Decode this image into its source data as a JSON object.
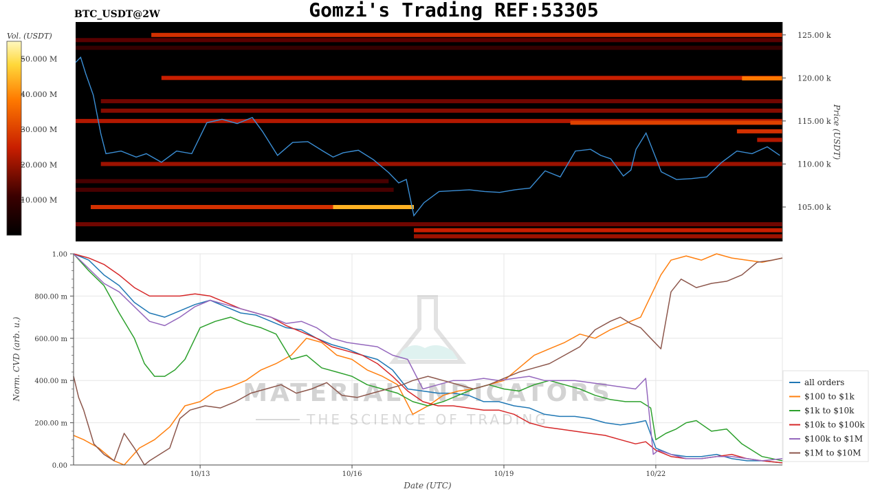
{
  "title": "Gomzi's Trading REF:53305",
  "symbol": "BTC_USDT@2W",
  "watermark": {
    "line1": "MATERIAL INDICATORS",
    "line2": "THE SCIENCE OF TRADING"
  },
  "colors": {
    "heatmap_bg": "#000000",
    "price_line": "#3b8fd6",
    "grid": "#e8e8e8"
  },
  "chart_data": [
    {
      "type": "heatmap",
      "name_label": "BTC_USDT@2W",
      "ylabel": "Price (USDT)",
      "ylim": [
        101000,
        126500
      ],
      "yticks": [
        {
          "value": 105000,
          "label": "105.00 k"
        },
        {
          "value": 110000,
          "label": "110.00 k"
        },
        {
          "value": 115000,
          "label": "115.00 k"
        },
        {
          "value": 120000,
          "label": "120.00 k"
        },
        {
          "value": 125000,
          "label": "125.00 k"
        }
      ],
      "colorbar": {
        "label": "Vol. (USDT)",
        "range": [
          0,
          55000000
        ],
        "ticks": [
          {
            "value": 10000000,
            "label": "10.000 M"
          },
          {
            "value": 20000000,
            "label": "20.000 M"
          },
          {
            "value": 30000000,
            "label": "30.000 M"
          },
          {
            "value": 40000000,
            "label": "40.000 M"
          },
          {
            "value": 50000000,
            "label": "50.000 M"
          }
        ]
      },
      "xlim": [
        0,
        14
      ],
      "bands": [
        {
          "price": 125000,
          "start": 1.5,
          "end": 14,
          "intensity": 0.55
        },
        {
          "price": 124400,
          "start": 0,
          "end": 14,
          "intensity": 0.25
        },
        {
          "price": 123500,
          "start": 0,
          "end": 14,
          "intensity": 0.15
        },
        {
          "price": 120000,
          "start": 1.7,
          "end": 14,
          "intensity": 0.5
        },
        {
          "price": 119950,
          "start": 13.2,
          "end": 14,
          "intensity": 0.75
        },
        {
          "price": 117300,
          "start": 0.5,
          "end": 14,
          "intensity": 0.3
        },
        {
          "price": 116200,
          "start": 0.5,
          "end": 14,
          "intensity": 0.35
        },
        {
          "price": 115000,
          "start": 0,
          "end": 14,
          "intensity": 0.45
        },
        {
          "price": 114800,
          "start": 9.8,
          "end": 14,
          "intensity": 0.6
        },
        {
          "price": 113800,
          "start": 13.1,
          "end": 14,
          "intensity": 0.55
        },
        {
          "price": 112800,
          "start": 13.5,
          "end": 14,
          "intensity": 0.45
        },
        {
          "price": 110000,
          "start": 0.5,
          "end": 14,
          "intensity": 0.4
        },
        {
          "price": 108000,
          "start": 0,
          "end": 6.2,
          "intensity": 0.2
        },
        {
          "price": 107000,
          "start": 0,
          "end": 6.3,
          "intensity": 0.2
        },
        {
          "price": 105000,
          "start": 0.3,
          "end": 5.1,
          "intensity": 0.55
        },
        {
          "price": 105000,
          "start": 5.1,
          "end": 6.7,
          "intensity": 0.9
        },
        {
          "price": 103000,
          "start": 0,
          "end": 14,
          "intensity": 0.3
        },
        {
          "price": 102300,
          "start": 6.7,
          "end": 14,
          "intensity": 0.5
        },
        {
          "price": 101600,
          "start": 6.7,
          "end": 14,
          "intensity": 0.4
        }
      ],
      "price_series": {
        "x": [
          0,
          0.1,
          0.2,
          0.35,
          0.5,
          0.6,
          0.9,
          1.2,
          1.4,
          1.7,
          2.0,
          2.3,
          2.6,
          2.9,
          3.2,
          3.5,
          3.7,
          4.0,
          4.3,
          4.6,
          4.9,
          5.1,
          5.3,
          5.6,
          5.9,
          6.2,
          6.4,
          6.55,
          6.7,
          6.9,
          7.2,
          7.5,
          7.8,
          8.1,
          8.4,
          8.7,
          9.0,
          9.3,
          9.6,
          9.9,
          10.2,
          10.4,
          10.6,
          10.85,
          11.0,
          11.1,
          11.3,
          11.6,
          11.9,
          12.2,
          12.5,
          12.8,
          13.1,
          13.4,
          13.7,
          13.95
        ],
        "y": [
          121800,
          122400,
          120500,
          118000,
          113500,
          111200,
          111500,
          110800,
          111200,
          110200,
          111500,
          111200,
          114800,
          115200,
          114700,
          115400,
          113800,
          111000,
          112500,
          112600,
          111500,
          110800,
          111300,
          111600,
          110500,
          109000,
          107800,
          108200,
          104000,
          105500,
          106800,
          106900,
          107000,
          106800,
          106700,
          107000,
          107200,
          109200,
          108500,
          111500,
          111700,
          111000,
          110600,
          108600,
          109300,
          111700,
          113600,
          109100,
          108200,
          108300,
          108500,
          110200,
          111500,
          111200,
          112000,
          111000
        ]
      }
    },
    {
      "type": "line",
      "xlabel": "Date (UTC)",
      "ylabel": "Norm. CVD (arb. u.)",
      "xlim": [
        0,
        14
      ],
      "ylim": [
        0,
        1
      ],
      "xticks": [
        {
          "value": 2.5,
          "label": "10/13"
        },
        {
          "value": 5.5,
          "label": "10/16"
        },
        {
          "value": 8.5,
          "label": "10/19"
        },
        {
          "value": 11.5,
          "label": "10/22"
        }
      ],
      "yticks": [
        {
          "value": 0.0,
          "label": "0.00"
        },
        {
          "value": 0.2,
          "label": "200.00 m"
        },
        {
          "value": 0.4,
          "label": "400.00 m"
        },
        {
          "value": 0.6,
          "label": "600.00 m"
        },
        {
          "value": 0.8,
          "label": "800.00 m"
        },
        {
          "value": 1.0,
          "label": "1.00"
        }
      ],
      "grid": true,
      "legend_position": "right",
      "series": [
        {
          "name": "all orders",
          "color": "#1f77b4",
          "x": [
            0,
            0.3,
            0.6,
            0.9,
            1.2,
            1.5,
            1.8,
            2.1,
            2.4,
            2.7,
            3.0,
            3.3,
            3.6,
            3.9,
            4.2,
            4.5,
            4.8,
            5.1,
            5.4,
            5.7,
            6.0,
            6.3,
            6.6,
            6.9,
            7.2,
            7.5,
            7.8,
            8.1,
            8.4,
            8.7,
            9.0,
            9.3,
            9.6,
            9.9,
            10.2,
            10.5,
            10.8,
            11.1,
            11.3,
            11.5,
            11.8,
            12.1,
            12.4,
            12.7,
            13.0,
            13.3,
            13.6,
            14.0
          ],
          "y": [
            1.0,
            0.97,
            0.9,
            0.85,
            0.77,
            0.72,
            0.7,
            0.73,
            0.76,
            0.78,
            0.75,
            0.72,
            0.71,
            0.68,
            0.65,
            0.64,
            0.6,
            0.57,
            0.55,
            0.52,
            0.5,
            0.45,
            0.36,
            0.35,
            0.34,
            0.34,
            0.33,
            0.3,
            0.3,
            0.28,
            0.27,
            0.24,
            0.23,
            0.23,
            0.22,
            0.2,
            0.19,
            0.2,
            0.21,
            0.08,
            0.05,
            0.04,
            0.04,
            0.05,
            0.03,
            0.02,
            0.02,
            0.01
          ]
        },
        {
          "name": "$100 to $1k",
          "color": "#ff7f0e",
          "x": [
            0,
            0.2,
            0.5,
            0.8,
            1.0,
            1.3,
            1.6,
            1.9,
            2.2,
            2.5,
            2.8,
            3.1,
            3.4,
            3.7,
            4.0,
            4.3,
            4.6,
            4.9,
            5.2,
            5.5,
            5.8,
            6.1,
            6.4,
            6.7,
            7.0,
            7.3,
            7.6,
            7.9,
            8.2,
            8.5,
            8.8,
            9.1,
            9.4,
            9.7,
            10.0,
            10.3,
            10.6,
            10.9,
            11.2,
            11.4,
            11.6,
            11.8,
            12.1,
            12.4,
            12.7,
            13.0,
            13.3,
            13.6,
            14.0
          ],
          "y": [
            0.14,
            0.12,
            0.08,
            0.02,
            0.0,
            0.08,
            0.12,
            0.18,
            0.28,
            0.3,
            0.35,
            0.37,
            0.4,
            0.45,
            0.48,
            0.52,
            0.6,
            0.58,
            0.52,
            0.5,
            0.45,
            0.42,
            0.38,
            0.24,
            0.28,
            0.33,
            0.35,
            0.36,
            0.38,
            0.4,
            0.46,
            0.52,
            0.55,
            0.58,
            0.62,
            0.6,
            0.64,
            0.67,
            0.7,
            0.8,
            0.9,
            0.97,
            0.99,
            0.97,
            1.0,
            0.98,
            0.97,
            0.96,
            0.98
          ]
        },
        {
          "name": "$1k to $10k",
          "color": "#2ca02c",
          "x": [
            0,
            0.3,
            0.6,
            0.9,
            1.2,
            1.4,
            1.6,
            1.8,
            2.0,
            2.2,
            2.5,
            2.8,
            3.1,
            3.4,
            3.7,
            4.0,
            4.3,
            4.6,
            4.9,
            5.2,
            5.5,
            5.8,
            6.1,
            6.4,
            6.7,
            7.0,
            7.3,
            7.6,
            7.9,
            8.2,
            8.5,
            8.8,
            9.1,
            9.4,
            9.7,
            10.0,
            10.3,
            10.6,
            10.9,
            11.2,
            11.4,
            11.5,
            11.7,
            11.9,
            12.1,
            12.3,
            12.6,
            12.9,
            13.2,
            13.6,
            14.0
          ],
          "y": [
            1.0,
            0.92,
            0.85,
            0.72,
            0.6,
            0.48,
            0.42,
            0.42,
            0.45,
            0.5,
            0.65,
            0.68,
            0.7,
            0.67,
            0.65,
            0.62,
            0.5,
            0.52,
            0.46,
            0.44,
            0.42,
            0.38,
            0.36,
            0.34,
            0.3,
            0.28,
            0.3,
            0.33,
            0.36,
            0.38,
            0.36,
            0.35,
            0.38,
            0.4,
            0.38,
            0.36,
            0.33,
            0.31,
            0.3,
            0.3,
            0.27,
            0.12,
            0.15,
            0.17,
            0.2,
            0.21,
            0.16,
            0.17,
            0.1,
            0.04,
            0.02
          ]
        },
        {
          "name": "$10k to $100k",
          "color": "#d62728",
          "x": [
            0,
            0.3,
            0.6,
            0.9,
            1.2,
            1.5,
            1.8,
            2.1,
            2.4,
            2.7,
            3.0,
            3.3,
            3.6,
            3.9,
            4.2,
            4.5,
            4.8,
            5.1,
            5.4,
            5.7,
            6.0,
            6.3,
            6.6,
            6.9,
            7.2,
            7.5,
            7.8,
            8.1,
            8.4,
            8.7,
            9.0,
            9.3,
            9.6,
            9.9,
            10.2,
            10.5,
            10.8,
            11.1,
            11.3,
            11.5,
            11.8,
            12.1,
            12.4,
            12.7,
            13.0,
            13.3,
            13.6,
            14.0
          ],
          "y": [
            1.0,
            0.98,
            0.95,
            0.9,
            0.84,
            0.8,
            0.8,
            0.8,
            0.81,
            0.8,
            0.77,
            0.74,
            0.72,
            0.7,
            0.66,
            0.63,
            0.6,
            0.56,
            0.54,
            0.52,
            0.48,
            0.42,
            0.35,
            0.3,
            0.28,
            0.28,
            0.27,
            0.26,
            0.26,
            0.24,
            0.2,
            0.18,
            0.17,
            0.16,
            0.15,
            0.14,
            0.12,
            0.1,
            0.11,
            0.07,
            0.04,
            0.03,
            0.03,
            0.04,
            0.05,
            0.03,
            0.02,
            0.01
          ]
        },
        {
          "name": "$100k to $1M",
          "color": "#9467bd",
          "x": [
            0,
            0.3,
            0.6,
            0.9,
            1.2,
            1.5,
            1.8,
            2.1,
            2.4,
            2.7,
            3.0,
            3.3,
            3.6,
            3.9,
            4.2,
            4.5,
            4.8,
            5.1,
            5.4,
            5.7,
            6.0,
            6.3,
            6.6,
            6.9,
            7.2,
            7.5,
            7.8,
            8.1,
            8.4,
            8.7,
            9.0,
            9.3,
            9.6,
            9.9,
            10.2,
            10.5,
            10.8,
            11.1,
            11.3,
            11.45,
            11.55,
            11.8,
            12.1,
            12.4,
            12.7,
            13.0,
            13.3,
            13.6,
            14.0
          ],
          "y": [
            1.0,
            0.93,
            0.86,
            0.82,
            0.75,
            0.68,
            0.66,
            0.7,
            0.75,
            0.78,
            0.76,
            0.74,
            0.72,
            0.7,
            0.67,
            0.68,
            0.65,
            0.6,
            0.58,
            0.57,
            0.56,
            0.52,
            0.5,
            0.36,
            0.38,
            0.4,
            0.4,
            0.41,
            0.4,
            0.41,
            0.42,
            0.4,
            0.4,
            0.4,
            0.39,
            0.38,
            0.37,
            0.36,
            0.41,
            0.05,
            0.07,
            0.05,
            0.03,
            0.03,
            0.04,
            0.04,
            0.03,
            0.02,
            0.03
          ]
        },
        {
          "name": "$1M to $10M",
          "color": "#8c564b",
          "x": [
            0,
            0.1,
            0.2,
            0.4,
            0.6,
            0.8,
            1.0,
            1.2,
            1.4,
            1.5,
            1.7,
            1.9,
            2.1,
            2.3,
            2.6,
            2.9,
            3.2,
            3.5,
            3.8,
            4.1,
            4.4,
            4.7,
            5.0,
            5.3,
            5.6,
            5.9,
            6.2,
            6.5,
            6.7,
            7.0,
            7.3,
            7.6,
            7.9,
            8.2,
            8.5,
            8.8,
            9.1,
            9.4,
            9.7,
            10.0,
            10.3,
            10.6,
            10.8,
            11.0,
            11.2,
            11.4,
            11.6,
            11.8,
            12.0,
            12.3,
            12.6,
            12.9,
            13.2,
            13.5,
            13.8,
            14.0
          ],
          "y": [
            0.42,
            0.32,
            0.26,
            0.1,
            0.05,
            0.02,
            0.15,
            0.08,
            0.0,
            0.02,
            0.05,
            0.08,
            0.22,
            0.26,
            0.28,
            0.27,
            0.3,
            0.34,
            0.36,
            0.38,
            0.34,
            0.36,
            0.39,
            0.33,
            0.32,
            0.34,
            0.36,
            0.38,
            0.4,
            0.42,
            0.4,
            0.38,
            0.36,
            0.38,
            0.41,
            0.44,
            0.46,
            0.48,
            0.52,
            0.56,
            0.64,
            0.68,
            0.7,
            0.67,
            0.65,
            0.6,
            0.55,
            0.82,
            0.88,
            0.84,
            0.86,
            0.87,
            0.9,
            0.96,
            0.97,
            0.98
          ]
        }
      ]
    }
  ]
}
